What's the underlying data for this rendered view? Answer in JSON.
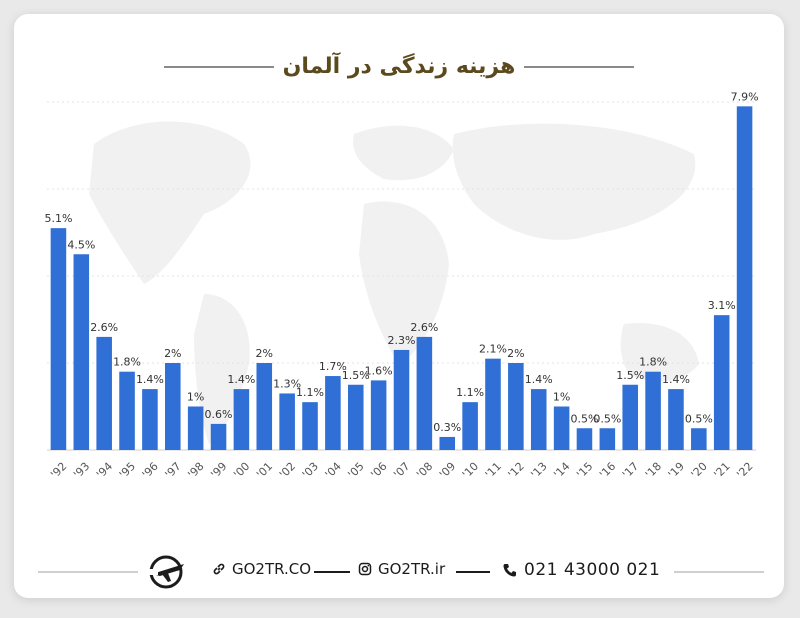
{
  "title": "هزینه زندگی در آلمان",
  "chart_data": {
    "type": "bar",
    "title": "هزینه زندگی در آلمان",
    "categories": [
      "'92",
      "'93",
      "'94",
      "'95",
      "'96",
      "'97",
      "'98",
      "'99",
      "'00",
      "'01",
      "'02",
      "'03",
      "'04",
      "'05",
      "'06",
      "'07",
      "'08",
      "'09",
      "'10",
      "'11",
      "'12",
      "'13",
      "'14",
      "'15",
      "'16",
      "'17",
      "'18",
      "'19",
      "'20",
      "'21",
      "'22"
    ],
    "values": [
      5.1,
      4.5,
      2.6,
      1.8,
      1.4,
      2,
      1,
      0.6,
      1.4,
      2,
      1.3,
      1.1,
      1.7,
      1.5,
      1.6,
      2.3,
      2.6,
      0.3,
      1.1,
      2.1,
      2,
      1.4,
      1,
      0.5,
      0.5,
      1.5,
      1.8,
      1.4,
      0.5,
      3.1,
      7.9
    ],
    "labels": [
      "5.1%",
      "4.5%",
      "2.6%",
      "1.8%",
      "1.4%",
      "2%",
      "1%",
      "0.6%",
      "1.4%",
      "2%",
      "1.3%",
      "1.1%",
      "1.7%",
      "1.5%",
      "1.6%",
      "2.3%",
      "2.6%",
      "0.3%",
      "1.1%",
      "2.1%",
      "2%",
      "1.4%",
      "1%",
      "0.5%",
      "0.5%",
      "1.5%",
      "1.8%",
      "1.4%",
      "0.5%",
      "3.1%",
      "7.9%"
    ],
    "ylim": [
      0,
      8
    ],
    "grid": true,
    "bar_color": "#2f6fd6",
    "xlabel": "",
    "ylabel": ""
  },
  "footer": {
    "website": "GO2TR.CO",
    "instagram": "GO2TR.ir",
    "phone": "021 43000 021"
  },
  "icons": {
    "logo": "airplane-globe-logo",
    "link": "link-icon",
    "instagram": "instagram-icon",
    "phone": "phone-icon"
  },
  "colors": {
    "title": "#5c4a1f",
    "bar": "#2f6fd6",
    "grid": "#e3e3e3"
  }
}
